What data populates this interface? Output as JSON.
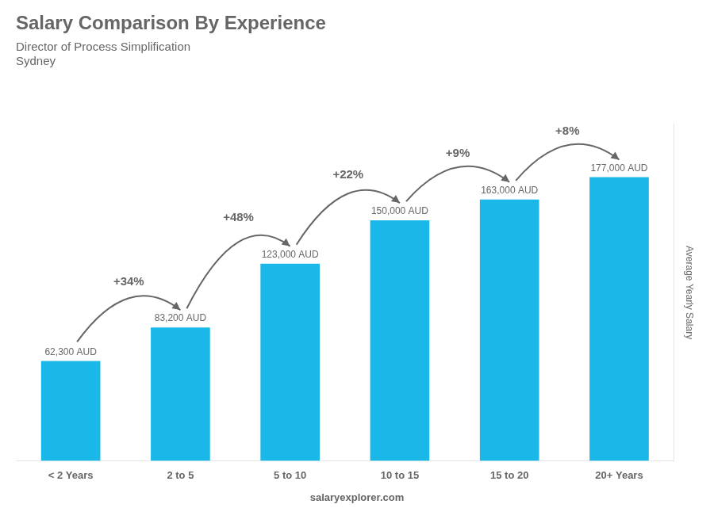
{
  "chart_data": {
    "type": "bar",
    "title": "Salary Comparison By Experience",
    "subtitle": [
      "Director of Process Simplification",
      "Sydney"
    ],
    "ylabel": "Average Yearly Salary",
    "categories": [
      "< 2 Years",
      "2 to 5",
      "5 to 10",
      "10 to 15",
      "15 to 20",
      "20+ Years"
    ],
    "values": [
      62300,
      83200,
      123000,
      150000,
      163000,
      177000
    ],
    "value_labels": [
      "62,300 AUD",
      "83,200 AUD",
      "123,000 AUD",
      "150,000 AUD",
      "163,000 AUD",
      "177,000 AUD"
    ],
    "data_labels": true,
    "annotations": [
      "+34%",
      "+48%",
      "+22%",
      "+9%",
      "+8%"
    ],
    "footer": "salaryexplorer.com",
    "color": "#1ab8e8",
    "ylim": [
      0,
      210000
    ],
    "grid": false,
    "legend": false,
    "tick_labels": "x"
  }
}
